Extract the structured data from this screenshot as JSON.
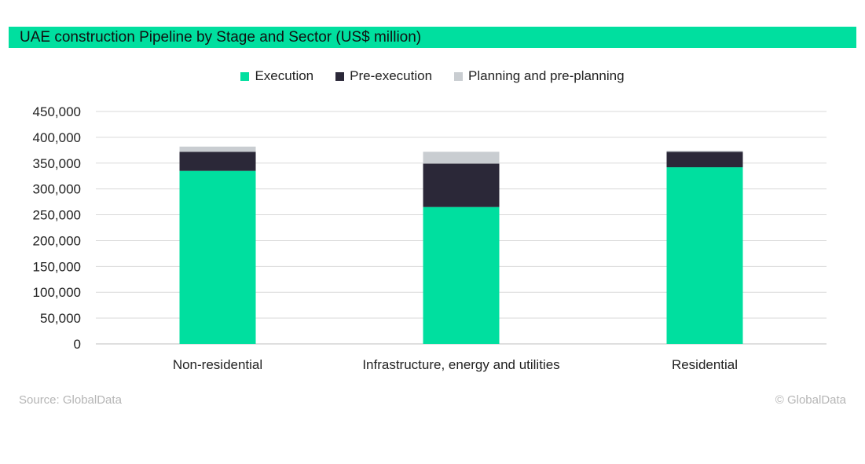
{
  "chart_data": {
    "type": "bar",
    "stacked": true,
    "title": "UAE construction Pipeline by Stage and Sector (US$ million)",
    "categories": [
      "Non-residential",
      "Infrastructure, energy and utilities",
      "Residential"
    ],
    "series": [
      {
        "name": "Execution",
        "color": "#00df9f",
        "values": [
          335000,
          265000,
          342000
        ]
      },
      {
        "name": "Pre-execution",
        "color": "#2b2838",
        "values": [
          37000,
          84000,
          30000
        ]
      },
      {
        "name": "Planning and pre-planning",
        "color": "#c9cdd1",
        "values": [
          10000,
          23000,
          2000
        ]
      }
    ],
    "ylim": [
      0,
      450000
    ],
    "yticks": [
      0,
      50000,
      100000,
      150000,
      200000,
      250000,
      300000,
      350000,
      400000,
      450000
    ],
    "ytick_labels": [
      "0",
      "50,000",
      "100,000",
      "150,000",
      "200,000",
      "250,000",
      "300,000",
      "350,000",
      "400,000",
      "450,000"
    ],
    "grid": true,
    "legend_position": "top-center"
  },
  "footer": {
    "source": "Source: GlobalData",
    "copyright": "© GlobalData"
  }
}
